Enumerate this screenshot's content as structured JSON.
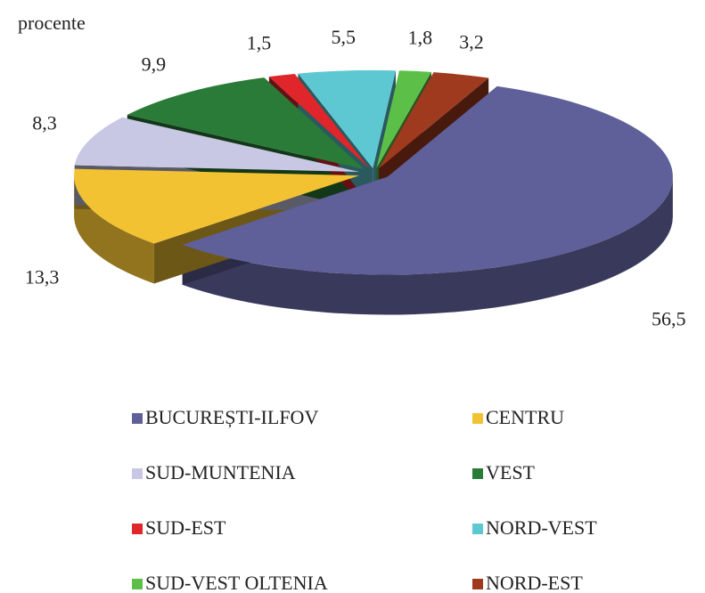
{
  "chart_data": {
    "type": "pie",
    "ylabel": "procente",
    "categories": [
      "BUCUREȘTI-ILFOV",
      "CENTRU",
      "SUD-MUNTENIA",
      "VEST",
      "SUD-EST",
      "NORD-VEST",
      "SUD-VEST OLTENIA",
      "NORD-EST"
    ],
    "values": [
      56.5,
      13.3,
      8.3,
      9.9,
      1.5,
      5.5,
      1.8,
      3.2
    ],
    "value_labels": [
      "56,5",
      "13,3",
      "8,3",
      "9,9",
      "1,5",
      "5,5",
      "1,8",
      "3,2"
    ],
    "colors": [
      "#5f5f99",
      "#f3c232",
      "#c8c8e4",
      "#2a7a38",
      "#e0262a",
      "#5ec8d2",
      "#5cc048",
      "#a03a1e"
    ]
  }
}
